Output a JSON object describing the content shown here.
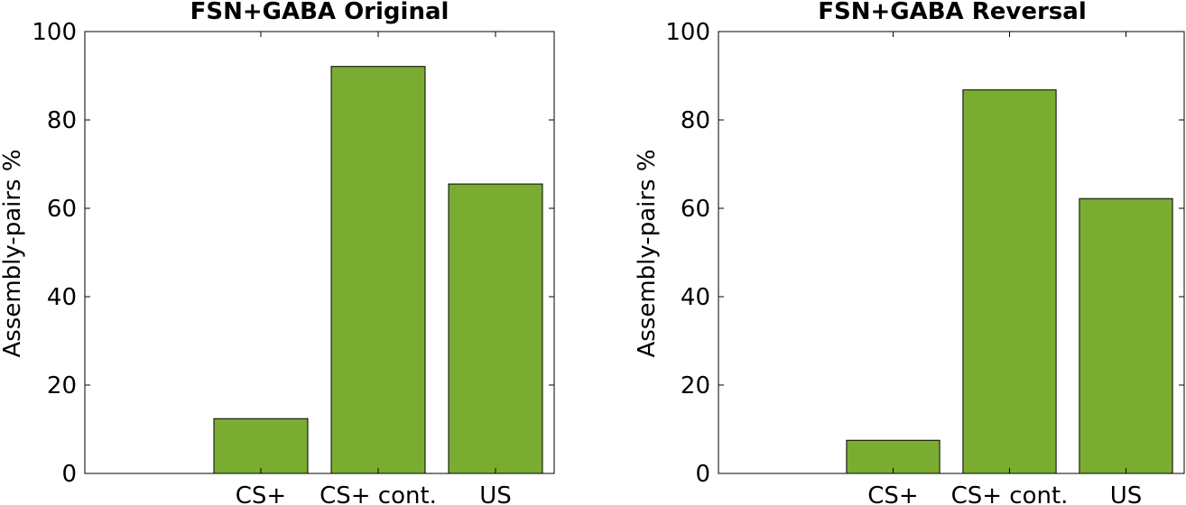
{
  "chart_data": [
    {
      "type": "bar",
      "title": "FSN+GABA Original",
      "ylabel": "Assembly-pairs %",
      "xlabel": "",
      "categories": [
        "CS+",
        "CS+ cont.",
        "US"
      ],
      "values": [
        12.4,
        92.1,
        65.5
      ],
      "ylim": [
        0,
        100
      ],
      "yticks": [
        0,
        20,
        40,
        60,
        80,
        100
      ],
      "xlim": [
        0.5,
        4.5
      ],
      "bar_color": "#7aac32",
      "grid": false,
      "legend": "none"
    },
    {
      "type": "bar",
      "title": "FSN+GABA Reversal",
      "ylabel": "Assembly-pairs %",
      "xlabel": "",
      "categories": [
        "CS+",
        "CS+ cont.",
        "US"
      ],
      "values": [
        7.5,
        86.8,
        62.2
      ],
      "ylim": [
        0,
        100
      ],
      "yticks": [
        0,
        20,
        40,
        60,
        80,
        100
      ],
      "xlim": [
        0.5,
        4.5
      ],
      "bar_color": "#7aac32",
      "grid": false,
      "legend": "none"
    }
  ]
}
